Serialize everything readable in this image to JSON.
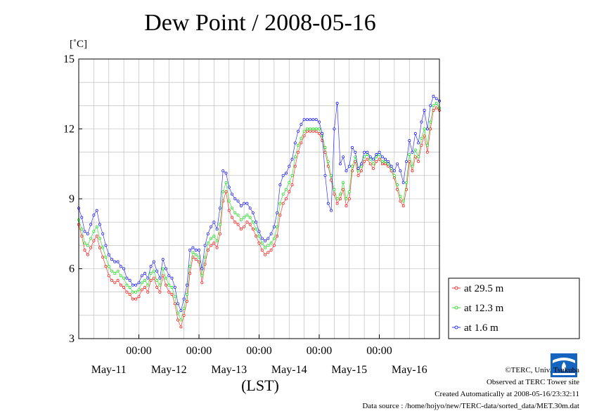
{
  "chart_data": {
    "type": "line",
    "title": "Dew Point / 2008-05-16",
    "ylabel": "[˚C]",
    "xlabel": "(LST)",
    "ylim": [
      3,
      15
    ],
    "yticks": [
      3,
      6,
      9,
      12,
      15
    ],
    "xlim": [
      0,
      6
    ],
    "x_tick_labels": [
      "00:00",
      "00:00",
      "00:00",
      "00:00",
      "00:00"
    ],
    "x_tick_positions": [
      1,
      2,
      3,
      4,
      5
    ],
    "day_labels": [
      "May-11",
      "May-12",
      "May-13",
      "May-14",
      "May-15",
      "May-16"
    ],
    "grid": true,
    "legend_position": "right",
    "series": [
      {
        "name": "at 29.5 m",
        "color": "#ff0000",
        "offset": 0,
        "x": [
          0.0,
          0.05,
          0.1,
          0.15,
          0.2,
          0.25,
          0.3,
          0.35,
          0.4,
          0.45,
          0.5,
          0.55,
          0.6,
          0.65,
          0.7,
          0.75,
          0.8,
          0.85,
          0.9,
          0.95,
          1.0,
          1.05,
          1.1,
          1.15,
          1.2,
          1.25,
          1.3,
          1.35,
          1.4,
          1.45,
          1.5,
          1.55,
          1.6,
          1.65,
          1.7,
          1.75,
          1.8,
          1.85,
          1.9,
          1.95,
          2.0,
          2.05,
          2.1,
          2.15,
          2.2,
          2.25,
          2.3,
          2.35,
          2.4,
          2.45,
          2.5,
          2.55,
          2.6,
          2.65,
          2.7,
          2.75,
          2.8,
          2.85,
          2.9,
          2.95,
          3.0,
          3.05,
          3.1,
          3.15,
          3.2,
          3.25,
          3.3,
          3.35,
          3.4,
          3.45,
          3.5,
          3.55,
          3.6,
          3.65,
          3.7,
          3.75,
          3.8,
          3.85,
          3.9,
          3.95,
          4.0,
          4.05,
          4.1,
          4.15,
          4.2,
          4.25,
          4.3,
          4.35,
          4.4,
          4.45,
          4.5,
          4.55,
          4.6,
          4.65,
          4.7,
          4.75,
          4.8,
          4.85,
          4.9,
          4.95,
          5.0,
          5.05,
          5.1,
          5.15,
          5.2,
          5.25,
          5.3,
          5.35,
          5.4,
          5.45,
          5.5,
          5.55,
          5.6,
          5.65,
          5.7,
          5.75,
          5.8,
          5.85,
          5.9,
          5.95,
          6.0
        ],
        "y": [
          7.9,
          7.4,
          6.8,
          6.6,
          6.9,
          7.2,
          7.4,
          6.9,
          6.5,
          6.1,
          5.7,
          5.5,
          5.4,
          5.5,
          5.3,
          5.2,
          5.0,
          4.9,
          4.7,
          4.7,
          4.8,
          5.1,
          5.2,
          5.0,
          5.5,
          5.6,
          5.2,
          5.0,
          5.7,
          5.3,
          5.0,
          4.9,
          4.5,
          3.8,
          3.5,
          4.0,
          4.6,
          5.8,
          6.5,
          6.4,
          6.3,
          5.4,
          6.2,
          6.8,
          7.0,
          7.1,
          6.9,
          7.5,
          8.9,
          9.3,
          8.5,
          8.2,
          8.0,
          7.9,
          7.7,
          7.8,
          8.0,
          7.9,
          7.7,
          7.4,
          7.1,
          6.8,
          6.6,
          6.7,
          6.8,
          7.0,
          7.4,
          8.3,
          8.8,
          9.0,
          9.3,
          9.6,
          10.4,
          11.0,
          11.4,
          11.7,
          11.9,
          11.9,
          11.9,
          11.9,
          11.8,
          11.5,
          11.0,
          10.4,
          9.8,
          9.2,
          8.8,
          9.0,
          9.4,
          8.7,
          9.0,
          10.2,
          10.6,
          10.0,
          10.2,
          10.6,
          10.7,
          10.5,
          10.3,
          10.6,
          10.7,
          10.5,
          10.5,
          10.4,
          10.2,
          9.9,
          9.4,
          8.9,
          8.7,
          9.4,
          10.6,
          10.2,
          10.8,
          10.6,
          11.3,
          11.7,
          11.0,
          12.0,
          12.8,
          12.9,
          12.8
        ]
      },
      {
        "name": "at 12.3 m",
        "color": "#00dd00",
        "offset": 0.2,
        "x": [
          0.0,
          0.05,
          0.1,
          0.15,
          0.2,
          0.25,
          0.3,
          0.35,
          0.4,
          0.45,
          0.5,
          0.55,
          0.6,
          0.65,
          0.7,
          0.75,
          0.8,
          0.85,
          0.9,
          0.95,
          1.0,
          1.05,
          1.1,
          1.15,
          1.2,
          1.25,
          1.3,
          1.35,
          1.4,
          1.45,
          1.5,
          1.55,
          1.6,
          1.65,
          1.7,
          1.75,
          1.8,
          1.85,
          1.9,
          1.95,
          2.0,
          2.05,
          2.1,
          2.15,
          2.2,
          2.25,
          2.3,
          2.35,
          2.4,
          2.45,
          2.5,
          2.55,
          2.6,
          2.65,
          2.7,
          2.75,
          2.8,
          2.85,
          2.9,
          2.95,
          3.0,
          3.05,
          3.1,
          3.15,
          3.2,
          3.25,
          3.3,
          3.35,
          3.4,
          3.45,
          3.5,
          3.55,
          3.6,
          3.65,
          3.7,
          3.75,
          3.8,
          3.85,
          3.9,
          3.95,
          4.0,
          4.05,
          4.1,
          4.15,
          4.2,
          4.25,
          4.3,
          4.35,
          4.4,
          4.45,
          4.5,
          4.55,
          4.6,
          4.65,
          4.7,
          4.75,
          4.8,
          4.85,
          4.9,
          4.95,
          5.0,
          5.05,
          5.1,
          5.15,
          5.2,
          5.25,
          5.3,
          5.35,
          5.4,
          5.45,
          5.5,
          5.55,
          5.6,
          5.65,
          5.7,
          5.75,
          5.8,
          5.85,
          5.9,
          5.95,
          6.0
        ],
        "y": [
          8.1,
          7.7,
          7.1,
          7.0,
          7.3,
          7.6,
          7.8,
          7.3,
          6.9,
          6.5,
          6.1,
          5.9,
          5.8,
          5.9,
          5.7,
          5.6,
          5.3,
          5.2,
          5.0,
          5.0,
          5.1,
          5.4,
          5.5,
          5.3,
          5.8,
          5.9,
          5.5,
          5.3,
          6.0,
          5.6,
          5.3,
          5.2,
          4.8,
          4.1,
          3.8,
          4.3,
          4.9,
          6.1,
          6.7,
          6.6,
          6.5,
          5.7,
          6.5,
          7.1,
          7.3,
          7.4,
          7.2,
          7.9,
          9.3,
          9.7,
          8.9,
          8.6,
          8.4,
          8.3,
          8.1,
          8.2,
          8.3,
          8.2,
          8.0,
          7.7,
          7.4,
          7.1,
          6.9,
          7.0,
          7.1,
          7.3,
          7.8,
          8.8,
          9.2,
          9.4,
          9.7,
          10.0,
          10.8,
          11.3,
          11.6,
          11.9,
          12.0,
          12.0,
          12.0,
          12.0,
          12.0,
          11.7,
          11.2,
          10.6,
          10.0,
          9.4,
          9.0,
          9.2,
          9.7,
          9.0,
          9.3,
          10.4,
          10.8,
          10.2,
          10.4,
          10.8,
          10.9,
          10.7,
          10.5,
          10.8,
          10.9,
          10.6,
          10.6,
          10.5,
          10.3,
          10.0,
          9.6,
          9.1,
          8.9,
          9.7,
          10.9,
          10.4,
          11.1,
          10.8,
          11.6,
          12.0,
          11.3,
          12.3,
          13.0,
          13.1,
          12.9
        ]
      },
      {
        "name": "at 1.6 m",
        "color": "#0000ff",
        "offset": 0.6,
        "x": [
          0.0,
          0.05,
          0.1,
          0.15,
          0.2,
          0.25,
          0.3,
          0.35,
          0.4,
          0.45,
          0.5,
          0.55,
          0.6,
          0.65,
          0.7,
          0.75,
          0.8,
          0.85,
          0.9,
          0.95,
          1.0,
          1.05,
          1.1,
          1.15,
          1.2,
          1.25,
          1.3,
          1.35,
          1.4,
          1.45,
          1.5,
          1.55,
          1.6,
          1.65,
          1.7,
          1.75,
          1.8,
          1.85,
          1.9,
          1.95,
          2.0,
          2.05,
          2.1,
          2.15,
          2.2,
          2.25,
          2.3,
          2.35,
          2.4,
          2.45,
          2.5,
          2.55,
          2.6,
          2.65,
          2.7,
          2.75,
          2.8,
          2.85,
          2.9,
          2.95,
          3.0,
          3.05,
          3.1,
          3.15,
          3.2,
          3.25,
          3.3,
          3.35,
          3.4,
          3.45,
          3.5,
          3.55,
          3.6,
          3.65,
          3.7,
          3.75,
          3.8,
          3.85,
          3.9,
          3.95,
          4.0,
          4.05,
          4.1,
          4.15,
          4.2,
          4.25,
          4.3,
          4.35,
          4.4,
          4.45,
          4.5,
          4.55,
          4.6,
          4.65,
          4.7,
          4.75,
          4.8,
          4.85,
          4.9,
          4.95,
          5.0,
          5.05,
          5.1,
          5.15,
          5.2,
          5.25,
          5.3,
          5.35,
          5.4,
          5.45,
          5.5,
          5.55,
          5.6,
          5.65,
          5.7,
          5.75,
          5.8,
          5.85,
          5.9,
          5.95,
          6.0
        ],
        "y": [
          8.6,
          8.2,
          7.6,
          7.5,
          7.9,
          8.3,
          8.5,
          7.9,
          7.5,
          7.0,
          6.6,
          6.4,
          6.3,
          6.3,
          6.1,
          6.0,
          5.6,
          5.5,
          5.3,
          5.3,
          5.4,
          5.7,
          5.8,
          5.6,
          6.1,
          6.3,
          5.9,
          5.6,
          6.4,
          6.0,
          5.7,
          5.6,
          5.2,
          4.5,
          4.2,
          4.7,
          5.3,
          6.8,
          6.9,
          6.8,
          6.8,
          6.0,
          7.0,
          7.5,
          7.8,
          8.0,
          7.7,
          8.6,
          10.2,
          10.1,
          9.5,
          9.2,
          9.0,
          8.9,
          8.7,
          8.8,
          8.8,
          8.6,
          8.4,
          8.0,
          7.6,
          7.3,
          7.2,
          7.3,
          7.5,
          7.8,
          8.4,
          9.6,
          10.0,
          10.1,
          10.4,
          10.7,
          11.4,
          11.9,
          12.2,
          12.4,
          12.4,
          12.4,
          12.4,
          12.4,
          12.3,
          11.8,
          10.0,
          8.8,
          8.5,
          12.0,
          13.1,
          10.5,
          10.8,
          10.2,
          10.4,
          11.2,
          11.0,
          10.3,
          10.5,
          11.0,
          11.0,
          10.8,
          10.7,
          10.9,
          11.0,
          10.8,
          10.7,
          10.6,
          10.4,
          10.2,
          10.5,
          10.2,
          9.7,
          10.6,
          11.5,
          11.0,
          11.8,
          11.4,
          12.3,
          12.8,
          12.0,
          13.0,
          13.4,
          13.3,
          13.2
        ]
      }
    ]
  },
  "unit_label": "[˚C]",
  "footer": {
    "credit": "©TERC, Univ. Tsukuba",
    "observed": "Observed at TERC Tower site",
    "created": "Created Automatically at 2008-05-16/23:32:11",
    "source": "Data source : /home/hojyo/new/TERC-data/sorted_data/MET.30m.dat"
  }
}
